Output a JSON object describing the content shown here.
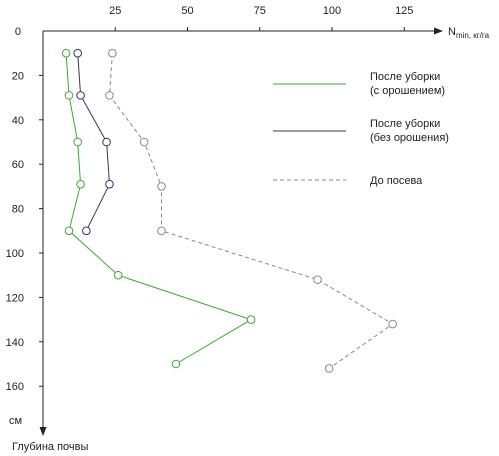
{
  "chart_data": {
    "type": "line",
    "title": "",
    "x_axis": {
      "label_main": "N",
      "label_sub": "min",
      "label_unit": ", кг/га",
      "range": [
        0,
        135
      ],
      "ticks": [
        25,
        50,
        75,
        100,
        125
      ],
      "tick_labels": [
        "25",
        "50",
        "75",
        "100",
        "125"
      ],
      "position": "top"
    },
    "y_axis": {
      "label": "Глубина почвы",
      "unit_label": "см",
      "range": [
        0,
        180
      ],
      "inverted": true,
      "ticks": [
        0,
        20,
        40,
        60,
        80,
        100,
        120,
        140,
        160
      ],
      "tick_labels": [
        "0",
        "20",
        "40",
        "60",
        "80",
        "100",
        "120",
        "140",
        "160"
      ]
    },
    "grid": false,
    "legend_position": "right",
    "series": [
      {
        "name": "После уборки\n(с орошением)",
        "name_lines": [
          "После уборки",
          "(с орошением)"
        ],
        "color": "#3aaa35",
        "style": "solid",
        "points": [
          [
            8,
            10
          ],
          [
            9,
            29
          ],
          [
            12,
            50
          ],
          [
            13,
            69
          ],
          [
            9,
            90
          ],
          [
            26,
            110
          ],
          [
            72,
            130
          ],
          [
            46,
            150
          ]
        ]
      },
      {
        "name": "После уборки\n(без орошения)",
        "name_lines": [
          "После уборки",
          "(без орошения)"
        ],
        "color": "#333366",
        "style": "solid",
        "points": [
          [
            12,
            10
          ],
          [
            13,
            29
          ],
          [
            22,
            50
          ],
          [
            23,
            69
          ],
          [
            15,
            90
          ]
        ]
      },
      {
        "name": "До посева",
        "name_lines": [
          "До посева"
        ],
        "color": "#888888",
        "style": "dashed",
        "points": [
          [
            24,
            10
          ],
          [
            23,
            29
          ],
          [
            35,
            50
          ],
          [
            41,
            70
          ],
          [
            41,
            90
          ],
          [
            95,
            112
          ],
          [
            121,
            132
          ],
          [
            99,
            152
          ]
        ]
      }
    ]
  },
  "labels": {
    "origin": "0"
  }
}
